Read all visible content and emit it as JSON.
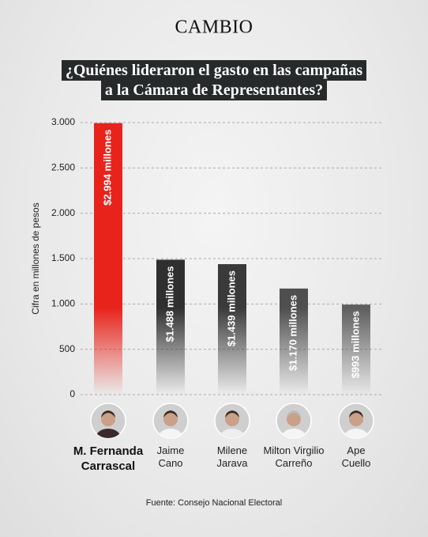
{
  "chart_data": {
    "type": "bar",
    "brand": "CAMBIO",
    "title": [
      "¿Quiénes lideraron el gasto en las campañas",
      "a la Cámara de Representantes?"
    ],
    "y_label": "Cifra en millones de pesos",
    "source": "Fuente: Consejo Nacional Electoral",
    "categories": [
      "M. Fernanda Carrascal",
      "Jaime Cano",
      "Milene Jarava",
      "Milton Virgilio Carreño",
      "Ape Cuello"
    ],
    "values": [
      2994,
      1488,
      1439,
      1170,
      993
    ],
    "value_labels": [
      "$2.994 millones",
      "$1.488 millones",
      "$1.439 millones",
      "$1.170 millones",
      "$993 millones"
    ],
    "colors": [
      "#e8231b",
      "#2f2f2f",
      "#3a3a3a",
      "#4f4f4f",
      "#5e5e5e"
    ],
    "ylim": [
      0,
      3000
    ],
    "yticks": [
      0,
      500,
      {
        "value": 1000,
        "label": "1.000"
      },
      {
        "value": 1500,
        "label": "1.500"
      },
      {
        "value": 2000,
        "label": "2.000"
      },
      {
        "value": 2500,
        "label": "2.500"
      },
      {
        "value": 3000,
        "label": "3.000"
      }
    ],
    "grid": true
  }
}
